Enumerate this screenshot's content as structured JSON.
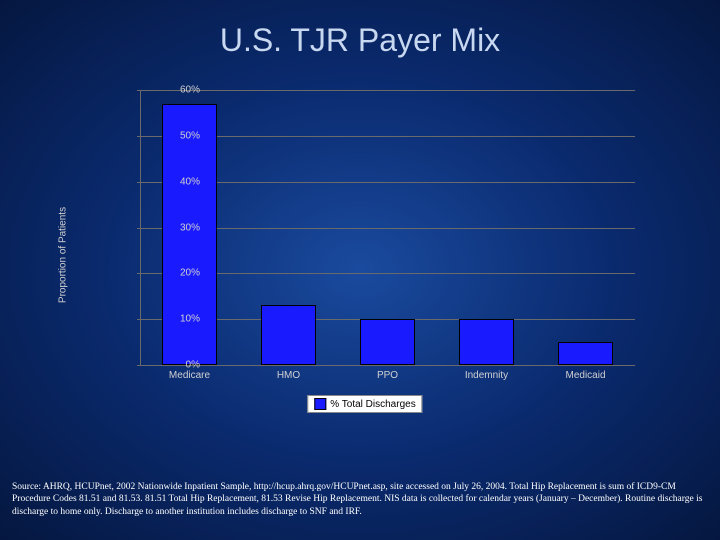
{
  "title": "U.S. TJR Payer Mix",
  "chart": {
    "type": "bar",
    "ylabel": "Proportion of Patients",
    "ylim": [
      0,
      60
    ],
    "ytick_step": 10,
    "ytick_suffix": "%",
    "categories": [
      "Medicare",
      "HMO",
      "PPO",
      "Indemnity",
      "Medicaid"
    ],
    "values": [
      57,
      13,
      10,
      10,
      5
    ],
    "bar_color": "#1a1aff",
    "bar_border": "#000000",
    "grid_color": "#6a6a6a",
    "text_color": "#d0d0d0",
    "legend_label": "% Total Discharges",
    "legend_bg": "#ffffff"
  },
  "footnote": "Source:  AHRQ, HCUPnet, 2002 Nationwide Inpatient Sample, http://hcup.ahrq.gov/HCUPnet.asp, site accessed on July 26, 2004.  Total Hip Replacement is sum of ICD9-CM Procedure Codes 81.51 and 81.53.  81.51 Total Hip Replacement, 81.53 Revise Hip Replacement.  NIS data is collected for calendar years (January – December).  Routine discharge is discharge to home only.  Discharge to another institution includes discharge to SNF and IRF."
}
